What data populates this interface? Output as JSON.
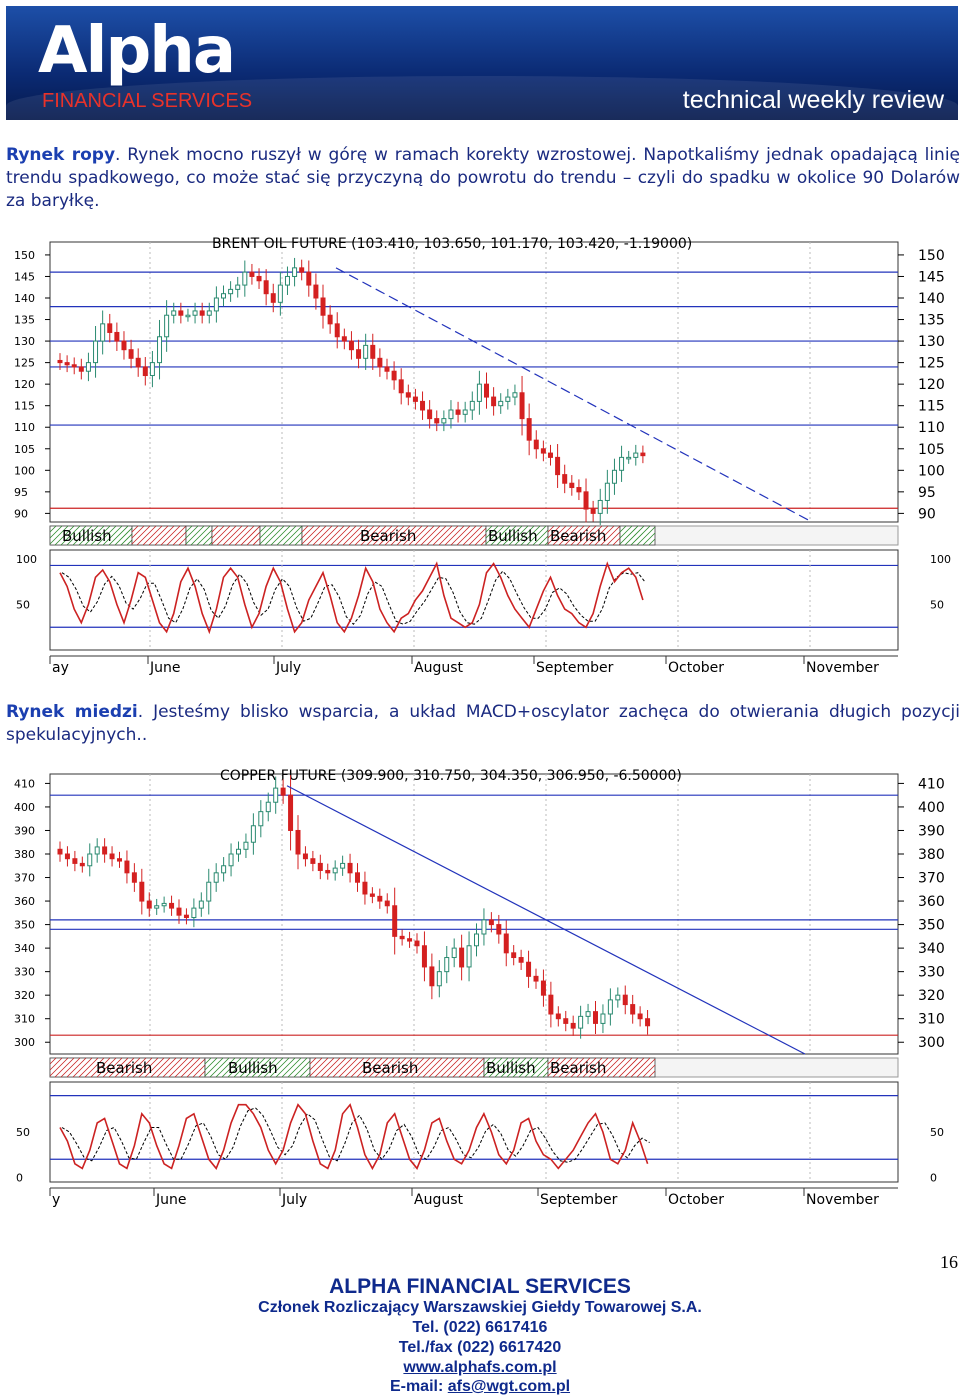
{
  "header": {
    "logo_text": "Alpha",
    "logo_sub": "FINANCIAL SERVICES",
    "review": "technical weekly review"
  },
  "oil": {
    "heading": "Rynek ropy",
    "text": ". Rynek mocno ruszył w górę w ramach korekty wzrostowej. Napotkaliśmy jednak opadającą linię trendu spadkowego, co może stać się przyczyną do powrotu do trendu – czyli do spadku w okolice 90 Dolarów za baryłkę.",
    "chart_data": {
      "type": "candlestick",
      "title": "BRENT OIL FUTURE (103.410, 103.650, 101.170, 103.420, -1.19000)",
      "ylim": [
        88,
        153
      ],
      "y_ticks": [
        150,
        145,
        140,
        135,
        130,
        125,
        120,
        115,
        110,
        105,
        100,
        95,
        90
      ],
      "x_labels": [
        "ay",
        "June",
        "July",
        "August",
        "September",
        "October",
        "November"
      ],
      "closes": [
        125,
        124.5,
        124,
        123,
        125,
        130,
        134,
        132,
        130,
        128,
        126,
        124,
        122,
        125,
        131,
        136,
        137,
        136,
        136,
        137,
        136,
        137,
        140,
        141,
        142,
        143,
        146,
        145,
        144,
        141,
        139,
        143,
        145,
        147,
        146,
        143,
        140,
        136,
        134,
        131,
        130,
        128,
        126,
        129,
        126,
        124,
        123,
        121,
        118,
        117,
        116,
        114,
        112,
        111,
        112,
        114,
        113,
        114,
        116,
        120,
        117,
        115,
        116,
        117,
        118,
        112,
        107,
        105,
        104,
        103,
        99,
        97,
        96,
        95,
        91,
        90,
        93,
        97,
        100,
        103,
        103,
        104,
        103.4
      ],
      "bands": [
        "Bullish",
        "Bearish",
        "Bullish",
        "Bearish"
      ],
      "osc_ticks": [
        100,
        50
      ],
      "stoch_k": [
        85,
        70,
        45,
        30,
        50,
        80,
        88,
        75,
        50,
        30,
        55,
        85,
        80,
        55,
        30,
        20,
        40,
        75,
        90,
        70,
        40,
        20,
        45,
        80,
        90,
        80,
        50,
        25,
        40,
        70,
        90,
        75,
        45,
        20,
        30,
        55,
        70,
        85,
        60,
        30,
        20,
        35,
        60,
        90,
        75,
        45,
        30,
        20,
        35,
        40,
        55,
        65,
        80,
        95,
        60,
        35,
        30,
        25,
        30,
        50,
        85,
        95,
        80,
        60,
        45,
        35,
        25,
        45,
        65,
        80,
        60,
        45,
        40,
        30,
        25,
        40,
        70,
        95,
        75,
        85,
        90,
        80,
        55
      ]
    }
  },
  "copper": {
    "heading": "Rynek miedzi",
    "text": ". Jesteśmy blisko wsparcia, a układ MACD+oscylator zachęca do otwierania długich pozycji spekulacyjnych..",
    "chart_data": {
      "type": "candlestick",
      "title": "COPPER FUTURE (309.900, 310.750, 304.350, 306.950, -6.50000)",
      "ylim": [
        295,
        414
      ],
      "y_ticks": [
        410,
        400,
        390,
        380,
        370,
        360,
        350,
        340,
        330,
        320,
        310,
        300
      ],
      "x_labels": [
        "y",
        "June",
        "July",
        "August",
        "September",
        "October",
        "November"
      ],
      "closes": [
        380,
        378,
        376,
        375,
        380,
        383,
        380,
        378,
        377,
        372,
        368,
        360,
        357,
        358,
        359,
        357,
        354,
        353,
        357,
        360,
        368,
        372,
        375,
        380,
        382,
        385,
        392,
        398,
        402,
        408,
        405,
        390,
        380,
        378,
        376,
        373,
        372,
        374,
        376,
        372,
        368,
        363,
        362,
        360,
        358,
        345,
        344,
        343,
        341,
        332,
        324,
        330,
        336,
        340,
        332,
        341,
        346,
        352,
        350,
        346,
        338,
        336,
        334,
        328,
        326,
        320,
        312,
        310,
        308,
        306,
        311,
        313,
        308,
        312,
        318,
        320,
        316,
        312,
        310,
        307
      ],
      "bands": [
        "Bearish",
        "Bullish",
        "Bearish",
        "Bullish",
        "Bearish"
      ],
      "osc_ticks": [
        50,
        0
      ],
      "stoch_k": [
        55,
        40,
        15,
        10,
        30,
        60,
        65,
        40,
        15,
        10,
        35,
        70,
        60,
        35,
        15,
        10,
        35,
        65,
        70,
        45,
        20,
        10,
        30,
        60,
        80,
        80,
        70,
        55,
        30,
        15,
        30,
        60,
        80,
        70,
        40,
        15,
        10,
        30,
        70,
        80,
        55,
        25,
        10,
        25,
        60,
        70,
        45,
        20,
        10,
        30,
        60,
        65,
        40,
        20,
        15,
        30,
        55,
        70,
        50,
        25,
        15,
        30,
        60,
        65,
        40,
        25,
        20,
        10,
        20,
        30,
        45,
        60,
        70,
        50,
        20,
        15,
        30,
        60,
        40,
        15
      ]
    }
  },
  "footer": {
    "page": "16",
    "company": "ALPHA FINANCIAL SERVICES",
    "member": "Członek Rozliczający Warszawskiej Giełdy Towarowej S.A.",
    "tel": "Tel. (022) 6617416",
    "fax": "Tel./fax (022) 6617420",
    "web": "www.alphafs.com.pl",
    "email_label": "E-mail: ",
    "email": "afs@wgt.com.pl"
  },
  "colors": {
    "blue_line": "#2233bb",
    "red_line": "#cc2222",
    "up": "#2a8a70",
    "down": "#d42020",
    "band_red": "#c82020",
    "band_green": "#2a8a2a"
  }
}
